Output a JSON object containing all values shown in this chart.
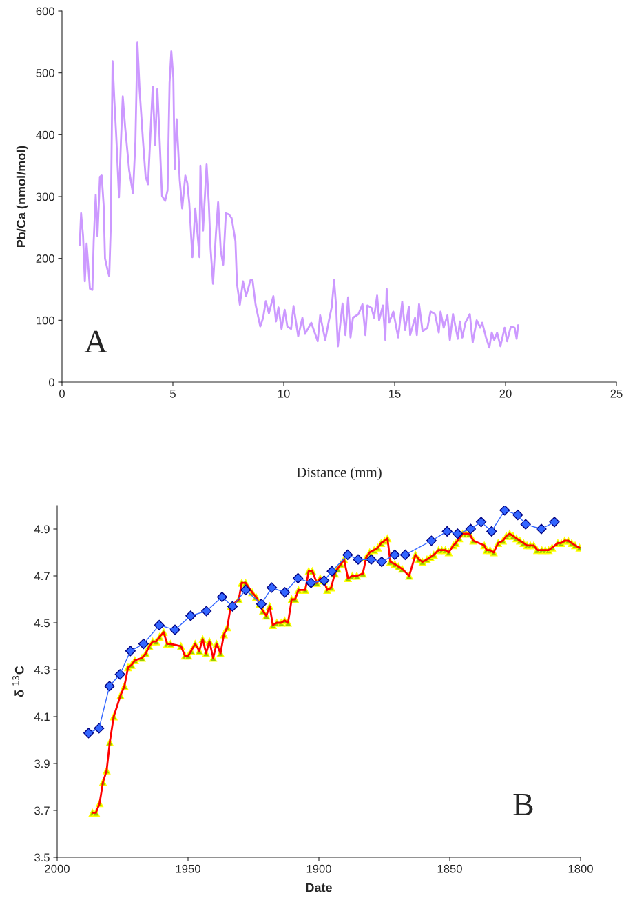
{
  "chart_data": [
    {
      "type": "line",
      "xlabel": "Distance (mm)",
      "ylabel": "Pb/Ca (nmol/mol)",
      "annotations": [
        "A"
      ],
      "xlim": [
        0,
        25
      ],
      "xticks": [
        0,
        5,
        10,
        15,
        20,
        25
      ],
      "ylim": [
        0,
        600
      ],
      "yticks": [
        0,
        100,
        200,
        300,
        400,
        500,
        600
      ],
      "grid": false,
      "legend": false,
      "marker": "none",
      "series": [
        {
          "color": "#cc99ff",
          "x": [
            0.8,
            0.86,
            0.95,
            1.03,
            1.11,
            1.26,
            1.37,
            1.43,
            1.52,
            1.6,
            1.71,
            1.79,
            1.88,
            1.94,
            2.05,
            2.13,
            2.2,
            2.28,
            2.36,
            2.45,
            2.57,
            2.66,
            2.74,
            2.85,
            3.03,
            3.2,
            3.31,
            3.4,
            3.5,
            3.65,
            3.77,
            3.88,
            4.09,
            4.2,
            4.3,
            4.39,
            4.51,
            4.65,
            4.76,
            4.85,
            4.93,
            5.02,
            5.08,
            5.17,
            5.31,
            5.42,
            5.56,
            5.65,
            5.74,
            5.88,
            6.01,
            6.2,
            6.24,
            6.36,
            6.52,
            6.62,
            6.7,
            6.81,
            6.94,
            7.04,
            7.16,
            7.27,
            7.39,
            7.53,
            7.65,
            7.82,
            7.89,
            8.02,
            8.16,
            8.3,
            8.5,
            8.59,
            8.73,
            8.94,
            9.07,
            9.19,
            9.33,
            9.53,
            9.65,
            9.76,
            9.9,
            10.04,
            10.16,
            10.33,
            10.44,
            10.65,
            10.84,
            10.96,
            11.24,
            11.53,
            11.64,
            11.87,
            12.04,
            12.16,
            12.27,
            12.36,
            12.44,
            12.65,
            12.78,
            12.9,
            13.01,
            13.12,
            13.37,
            13.55,
            13.68,
            13.77,
            13.96,
            14.07,
            14.21,
            14.3,
            14.47,
            14.58,
            14.64,
            14.75,
            14.94,
            15.16,
            15.34,
            15.47,
            15.64,
            15.7,
            15.92,
            16.0,
            16.1,
            16.26,
            16.48,
            16.62,
            16.82,
            16.99,
            17.07,
            17.21,
            17.38,
            17.49,
            17.63,
            17.85,
            17.94,
            18.05,
            18.19,
            18.39,
            18.52,
            18.7,
            18.86,
            18.95,
            19.12,
            19.27,
            19.38,
            19.49,
            19.62,
            19.77,
            19.96,
            20.07,
            20.24,
            20.41,
            20.5,
            20.57
          ],
          "values": [
            222,
            273,
            236,
            163,
            224,
            151,
            149,
            228,
            303,
            236,
            332,
            334,
            285,
            200,
            182,
            171,
            253,
            519,
            456,
            395,
            299,
            391,
            462,
            411,
            342,
            305,
            389,
            549,
            472,
            391,
            332,
            320,
            478,
            383,
            474,
            403,
            301,
            293,
            310,
            484,
            535,
            492,
            344,
            425,
            326,
            281,
            334,
            322,
            289,
            202,
            281,
            202,
            350,
            245,
            352,
            289,
            216,
            159,
            240,
            291,
            212,
            190,
            273,
            271,
            265,
            228,
            159,
            125,
            163,
            139,
            165,
            165,
            125,
            90,
            104,
            131,
            111,
            139,
            98,
            121,
            86,
            117,
            90,
            86,
            123,
            74,
            104,
            78,
            96,
            66,
            108,
            68,
            100,
            121,
            165,
            123,
            58,
            127,
            76,
            137,
            72,
            104,
            110,
            126,
            76,
            124,
            120,
            104,
            140,
            100,
            124,
            68,
            151,
            96,
            114,
            72,
            130,
            84,
            122,
            76,
            104,
            76,
            126,
            82,
            88,
            114,
            110,
            80,
            114,
            88,
            108,
            68,
            110,
            70,
            98,
            72,
            96,
            110,
            64,
            100,
            88,
            96,
            72,
            56,
            80,
            68,
            80,
            58,
            88,
            66,
            90,
            88,
            70,
            92
          ]
        }
      ]
    },
    {
      "type": "line",
      "xlabel": "Date",
      "ylabel": "δ $^{13}$C",
      "annotations": [
        "B"
      ],
      "xlim": [
        2000,
        1800
      ],
      "xticks": [
        2000,
        1950,
        1900,
        1850,
        1800
      ],
      "ylim": [
        3.5,
        5.0
      ],
      "yticks": [
        3.5,
        3.7,
        3.9,
        4.1,
        4.3,
        4.5,
        4.7,
        4.9
      ],
      "grid": false,
      "legend": false,
      "series": [
        {
          "color": "#3366ff",
          "marker": "diamond",
          "x": [
            1988,
            1984,
            1980,
            1976,
            1972,
            1967,
            1961,
            1955,
            1949,
            1943,
            1937,
            1933,
            1928,
            1922,
            1918,
            1913,
            1908,
            1903,
            1898,
            1895,
            1889,
            1885,
            1880,
            1876,
            1871,
            1867,
            1857,
            1851,
            1847,
            1842,
            1838,
            1834,
            1829,
            1824,
            1821,
            1815,
            1810
          ],
          "values": [
            4.03,
            4.05,
            4.23,
            4.28,
            4.38,
            4.41,
            4.49,
            4.47,
            4.53,
            4.55,
            4.61,
            4.57,
            4.64,
            4.58,
            4.65,
            4.63,
            4.69,
            4.67,
            4.68,
            4.72,
            4.79,
            4.77,
            4.77,
            4.76,
            4.79,
            4.79,
            4.85,
            4.89,
            4.88,
            4.9,
            4.93,
            4.89,
            4.98,
            4.96,
            4.92,
            4.9,
            4.93
          ]
        },
        {
          "color": "#ff0000",
          "marker": "triangle",
          "x": [
            1986.5,
            1985.2,
            1983.8,
            1982.5,
            1981.1,
            1979.9,
            1978.4,
            1975.8,
            1974.3,
            1972.9,
            1971.6,
            1970.3,
            1967.6,
            1966.1,
            1964.8,
            1963.5,
            1962.2,
            1960.9,
            1959.3,
            1958.0,
            1956.7,
            1952.7,
            1951.2,
            1949.9,
            1948.8,
            1947.3,
            1945.7,
            1944.4,
            1943.1,
            1941.8,
            1940.4,
            1939.1,
            1937.6,
            1936.3,
            1935.0,
            1933.7,
            1930.6,
            1929.5,
            1928.0,
            1925.5,
            1924.0,
            1922.7,
            1921.4,
            1920.1,
            1918.8,
            1917.6,
            1916.1,
            1914.4,
            1913.1,
            1911.8,
            1910.4,
            1909.1,
            1907.8,
            1905.2,
            1903.9,
            1902.5,
            1900.8,
            1899.5,
            1898.2,
            1896.8,
            1895.3,
            1893.9,
            1892.9,
            1891.6,
            1890.4,
            1888.9,
            1887.2,
            1885.5,
            1883.2,
            1881.9,
            1880.6,
            1878.9,
            1877.5,
            1876.2,
            1874.9,
            1873.8,
            1872.7,
            1871.0,
            1869.6,
            1868.2,
            1865.5,
            1863.1,
            1861.8,
            1860.4,
            1858.7,
            1857.4,
            1856.1,
            1854.3,
            1853.0,
            1851.7,
            1850.4,
            1848.6,
            1847.7,
            1846.4,
            1845.1,
            1843.8,
            1842.5,
            1841.0,
            1836.8,
            1835.9,
            1834.6,
            1833.2,
            1831.5,
            1829.7,
            1828.4,
            1827.1,
            1825.8,
            1824.5,
            1823.2,
            1821.8,
            1820.5,
            1819.2,
            1817.9,
            1816.6,
            1814.8,
            1813.5,
            1812.2,
            1810.9,
            1808.7,
            1807.4,
            1806.1,
            1804.7,
            1803.4,
            1802.1,
            1800.4
          ],
          "values": [
            3.69,
            3.69,
            3.73,
            3.82,
            3.87,
            3.99,
            4.1,
            4.19,
            4.23,
            4.31,
            4.32,
            4.34,
            4.35,
            4.37,
            4.4,
            4.42,
            4.42,
            4.44,
            4.46,
            4.41,
            4.41,
            4.4,
            4.36,
            4.36,
            4.38,
            4.41,
            4.38,
            4.43,
            4.37,
            4.42,
            4.35,
            4.41,
            4.37,
            4.45,
            4.48,
            4.57,
            4.6,
            4.67,
            4.67,
            4.63,
            4.61,
            4.58,
            4.55,
            4.53,
            4.57,
            4.49,
            4.5,
            4.5,
            4.51,
            4.5,
            4.6,
            4.6,
            4.64,
            4.64,
            4.72,
            4.72,
            4.67,
            4.69,
            4.68,
            4.64,
            4.65,
            4.71,
            4.73,
            4.75,
            4.77,
            4.69,
            4.7,
            4.7,
            4.71,
            4.78,
            4.8,
            4.81,
            4.82,
            4.84,
            4.85,
            4.86,
            4.76,
            4.75,
            4.74,
            4.73,
            4.7,
            4.79,
            4.77,
            4.76,
            4.77,
            4.78,
            4.79,
            4.81,
            4.81,
            4.81,
            4.8,
            4.83,
            4.84,
            4.86,
            4.88,
            4.88,
            4.88,
            4.85,
            4.83,
            4.81,
            4.81,
            4.8,
            4.84,
            4.85,
            4.87,
            4.88,
            4.87,
            4.86,
            4.85,
            4.84,
            4.83,
            4.83,
            4.83,
            4.81,
            4.81,
            4.81,
            4.81,
            4.82,
            4.84,
            4.84,
            4.85,
            4.85,
            4.84,
            4.83,
            4.82
          ]
        }
      ]
    }
  ]
}
